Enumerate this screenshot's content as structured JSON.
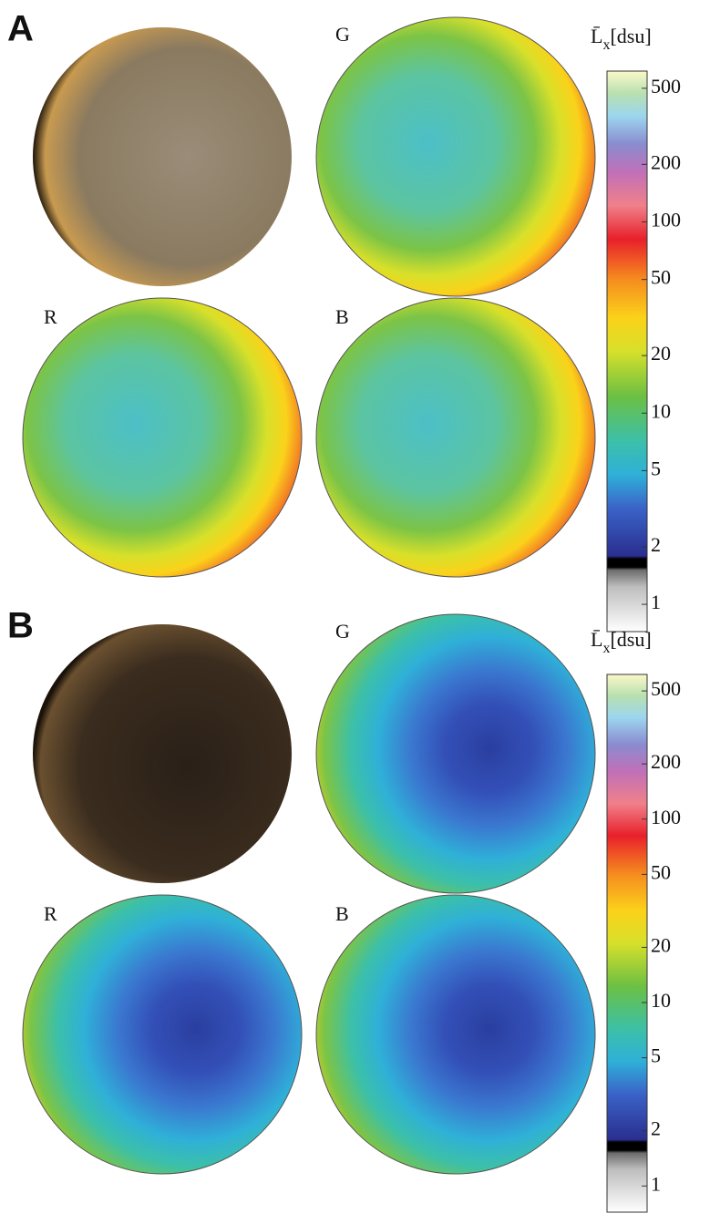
{
  "panels": [
    {
      "label": "A",
      "channels": [
        "G",
        "R",
        "B"
      ],
      "colorbar": {
        "symbol": "L̄",
        "subscript": "x",
        "unit": "[dsu]",
        "scale": "log",
        "ylim": [
          0.72,
          615
        ],
        "yticks": [
          1,
          2,
          5,
          10,
          20,
          50,
          100,
          200,
          500
        ]
      }
    },
    {
      "label": "B",
      "channels": [
        "G",
        "R",
        "B"
      ],
      "colorbar": {
        "symbol": "L̄",
        "subscript": "x",
        "unit": "[dsu]",
        "scale": "log",
        "ylim": [
          0.72,
          615
        ],
        "yticks": [
          1,
          2,
          5,
          10,
          20,
          50,
          100,
          200,
          500
        ]
      }
    }
  ]
}
